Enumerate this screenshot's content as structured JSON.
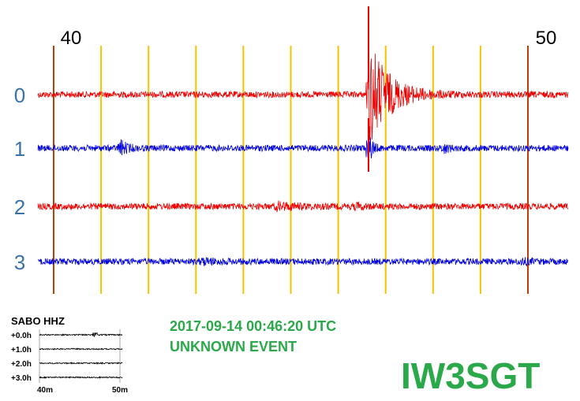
{
  "scale": {
    "start": "40",
    "end": "50"
  },
  "rows": [
    "0",
    "1",
    "2",
    "3"
  ],
  "station": {
    "name": "SABO HHZ",
    "rows": [
      "+0.0h",
      "+1.0h",
      "+2.0h",
      "+3.0h"
    ],
    "start": "40m",
    "end": "50m"
  },
  "event": {
    "time": "2017-09-14 00:46:20 UTC",
    "label": "UNKNOWN EVENT"
  },
  "callsign": "IW3SGT"
}
